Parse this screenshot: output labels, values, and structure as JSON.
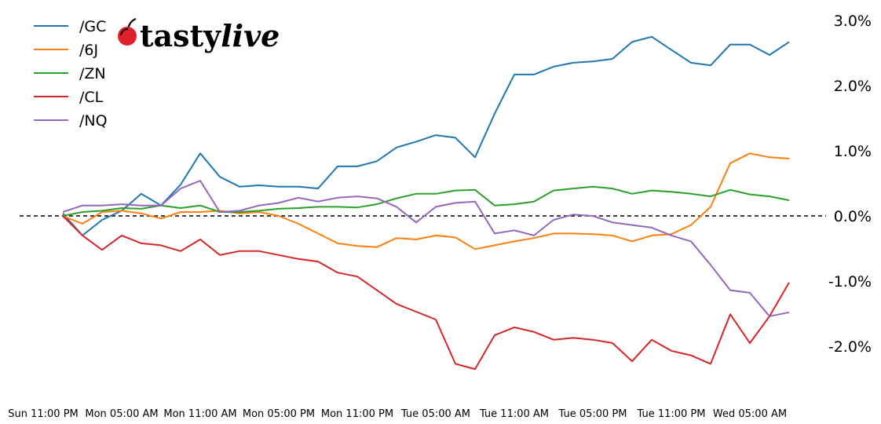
{
  "logo": {
    "text": "tastylive",
    "icon": "cherry-icon",
    "color": "#e0202a"
  },
  "chart_data": {
    "type": "line",
    "title": "",
    "xlabel": "",
    "ylabel": "",
    "ylim": [
      -2.9,
      3.3
    ],
    "y_unit": "%",
    "y_ticks": [
      3.0,
      2.0,
      1.0,
      0.0,
      -1.0,
      -2.0
    ],
    "y_tick_labels": [
      "3.0%",
      "2.0%",
      "1.0%",
      "0.0%",
      "-1.0%",
      "-2.0%"
    ],
    "y_axis_side": "right",
    "x_tick_labels": [
      "Sun 11:00 PM",
      "Mon 05:00 AM",
      "Mon 11:00 AM",
      "Mon 05:00 PM",
      "Mon 11:00 PM",
      "Tue 05:00 AM",
      "Tue 11:00 AM",
      "Tue 05:00 PM",
      "Tue 11:00 PM",
      "Wed 05:00 AM"
    ],
    "reference_line": {
      "y": 0.0,
      "style": "dashed",
      "color": "#000000"
    },
    "grid": false,
    "legend_position": "top-left",
    "x": [
      "Mon 12:30 AM",
      "Mon 02:00 AM",
      "Mon 03:30 AM",
      "Mon 05:00 AM",
      "Mon 06:30 AM",
      "Mon 08:00 AM",
      "Mon 09:30 AM",
      "Mon 11:00 AM",
      "Mon 12:30 PM",
      "Mon 02:00 PM",
      "Mon 03:30 PM",
      "Mon 05:00 PM",
      "Mon 06:30 PM",
      "Mon 08:00 PM",
      "Mon 09:30 PM",
      "Mon 11:00 PM",
      "Tue 12:30 AM",
      "Tue 02:00 AM",
      "Tue 03:30 AM",
      "Tue 05:00 AM",
      "Tue 06:30 AM",
      "Tue 08:00 AM",
      "Tue 09:30 AM",
      "Tue 11:00 AM",
      "Tue 12:30 PM",
      "Tue 02:00 PM",
      "Tue 03:30 PM",
      "Tue 05:00 PM",
      "Tue 06:30 PM",
      "Tue 08:00 PM",
      "Tue 09:30 PM",
      "Tue 11:00 PM",
      "Wed 12:30 AM",
      "Wed 02:00 AM",
      "Wed 03:30 AM",
      "Wed 05:00 AM",
      "Wed 06:30 AM",
      "Wed 08:00 AM"
    ],
    "series": [
      {
        "name": "/GC",
        "color": "#1f77b4",
        "values": [
          0.04,
          -0.3,
          -0.06,
          0.08,
          0.34,
          0.16,
          0.48,
          0.96,
          0.6,
          0.45,
          0.47,
          0.45,
          0.45,
          0.42,
          0.76,
          0.76,
          0.84,
          1.05,
          1.14,
          1.24,
          1.2,
          0.9,
          1.57,
          2.17,
          2.17,
          2.29,
          2.35,
          2.37,
          2.41,
          2.67,
          2.75,
          2.55,
          2.35,
          2.31,
          2.63,
          2.63,
          2.47,
          2.67
        ]
      },
      {
        "name": "/6J",
        "color": "#ff7f0e",
        "values": [
          0.0,
          -0.12,
          0.06,
          0.08,
          0.04,
          -0.04,
          0.06,
          0.06,
          0.08,
          0.04,
          0.06,
          0.0,
          -0.12,
          -0.27,
          -0.42,
          -0.46,
          -0.48,
          -0.34,
          -0.36,
          -0.3,
          -0.33,
          -0.51,
          -0.45,
          -0.39,
          -0.34,
          -0.27,
          -0.27,
          -0.28,
          -0.3,
          -0.39,
          -0.3,
          -0.28,
          -0.14,
          0.14,
          0.81,
          0.96,
          0.9,
          0.88
        ]
      },
      {
        "name": "/ZN",
        "color": "#2ca02c",
        "values": [
          0.0,
          0.06,
          0.08,
          0.12,
          0.11,
          0.16,
          0.12,
          0.16,
          0.06,
          0.06,
          0.08,
          0.11,
          0.12,
          0.14,
          0.14,
          0.13,
          0.18,
          0.27,
          0.34,
          0.34,
          0.39,
          0.4,
          0.16,
          0.18,
          0.22,
          0.39,
          0.42,
          0.45,
          0.42,
          0.34,
          0.39,
          0.37,
          0.34,
          0.3,
          0.4,
          0.33,
          0.3,
          0.24
        ]
      },
      {
        "name": "/CL",
        "color": "#d62728",
        "values": [
          0.0,
          -0.3,
          -0.52,
          -0.3,
          -0.42,
          -0.45,
          -0.54,
          -0.36,
          -0.6,
          -0.54,
          -0.54,
          -0.6,
          -0.66,
          -0.7,
          -0.87,
          -0.93,
          -1.14,
          -1.35,
          -1.47,
          -1.59,
          -2.27,
          -2.35,
          -1.83,
          -1.71,
          -1.78,
          -1.9,
          -1.87,
          -1.9,
          -1.95,
          -2.23,
          -1.9,
          -2.07,
          -2.14,
          -2.27,
          -1.51,
          -1.95,
          -1.54,
          -1.02
        ]
      },
      {
        "name": "/NQ",
        "color": "#9467bd",
        "values": [
          0.06,
          0.16,
          0.16,
          0.18,
          0.16,
          0.16,
          0.42,
          0.54,
          0.06,
          0.08,
          0.16,
          0.2,
          0.28,
          0.22,
          0.28,
          0.3,
          0.27,
          0.14,
          -0.1,
          0.14,
          0.2,
          0.22,
          -0.27,
          -0.22,
          -0.3,
          -0.06,
          0.02,
          0.0,
          -0.1,
          -0.14,
          -0.18,
          -0.3,
          -0.39,
          -0.75,
          -1.14,
          -1.18,
          -1.54,
          -1.48
        ]
      }
    ]
  }
}
